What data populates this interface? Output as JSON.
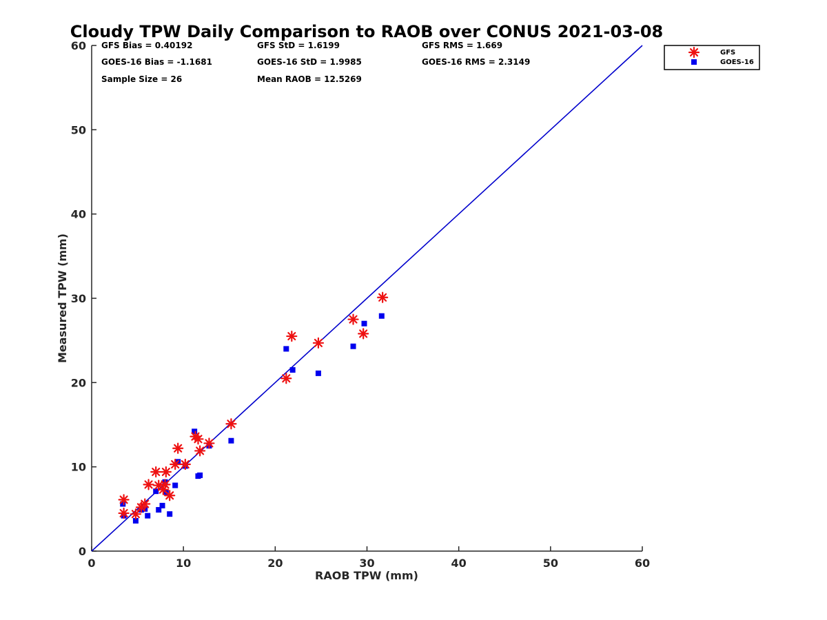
{
  "chart_data": {
    "type": "scatter",
    "title": "Cloudy TPW Daily Comparison to RAOB over CONUS 2021-03-08",
    "xlabel": "RAOB TPW (mm)",
    "ylabel": "Measured TPW (mm)",
    "xlim": [
      0,
      60
    ],
    "ylim": [
      0,
      60
    ],
    "xticks": [
      0,
      10,
      20,
      30,
      40,
      50,
      60
    ],
    "yticks": [
      0,
      10,
      20,
      30,
      40,
      50,
      60
    ],
    "grid": false,
    "legend_position": "top-right",
    "reference_line": {
      "from": [
        0,
        0
      ],
      "to": [
        60,
        60
      ],
      "color": "#0000cc"
    },
    "stats": {
      "gfs_bias": "GFS Bias = 0.40192",
      "gfs_std": "GFS StD = 1.6199",
      "gfs_rms": "GFS RMS = 1.669",
      "goes_bias": "GOES-16 Bias = -1.1681",
      "goes_std": "GOES-16 StD = 1.9985",
      "goes_rms": "GOES-16 RMS = 2.3149",
      "sample_size": "Sample Size = 26",
      "mean_raob": "Mean RAOB = 12.5269"
    },
    "series": [
      {
        "name": "GFS",
        "marker": "asterisk",
        "color": "#ee1111",
        "points": [
          [
            3.5,
            6.1
          ],
          [
            3.5,
            4.5
          ],
          [
            4.8,
            4.4
          ],
          [
            5.4,
            5.2
          ],
          [
            5.8,
            5.6
          ],
          [
            6.2,
            7.9
          ],
          [
            7.0,
            9.4
          ],
          [
            7.3,
            7.8
          ],
          [
            7.8,
            7.3
          ],
          [
            8.0,
            7.9
          ],
          [
            8.1,
            9.4
          ],
          [
            8.5,
            6.6
          ],
          [
            9.1,
            10.3
          ],
          [
            9.4,
            12.2
          ],
          [
            10.2,
            10.3
          ],
          [
            11.3,
            13.6
          ],
          [
            11.6,
            13.3
          ],
          [
            11.8,
            11.9
          ],
          [
            12.8,
            12.8
          ],
          [
            15.2,
            15.1
          ],
          [
            21.2,
            20.5
          ],
          [
            21.8,
            25.5
          ],
          [
            24.7,
            24.7
          ],
          [
            28.5,
            27.5
          ],
          [
            29.6,
            25.8
          ],
          [
            31.7,
            30.1
          ]
        ]
      },
      {
        "name": "GOES-16",
        "marker": "square",
        "color": "#0000ee",
        "points": [
          [
            3.4,
            5.6
          ],
          [
            3.5,
            4.2
          ],
          [
            4.8,
            3.6
          ],
          [
            5.4,
            4.9
          ],
          [
            5.8,
            5.0
          ],
          [
            6.1,
            4.2
          ],
          [
            7.0,
            7.1
          ],
          [
            7.3,
            4.9
          ],
          [
            7.7,
            5.4
          ],
          [
            8.0,
            8.2
          ],
          [
            8.1,
            7.0
          ],
          [
            8.5,
            4.4
          ],
          [
            9.1,
            7.8
          ],
          [
            9.4,
            10.6
          ],
          [
            10.2,
            10.1
          ],
          [
            11.2,
            14.2
          ],
          [
            11.6,
            8.9
          ],
          [
            11.8,
            9.0
          ],
          [
            12.8,
            12.5
          ],
          [
            15.2,
            13.1
          ],
          [
            21.2,
            24.0
          ],
          [
            21.9,
            21.5
          ],
          [
            24.7,
            21.1
          ],
          [
            28.5,
            24.3
          ],
          [
            29.7,
            27.0
          ],
          [
            31.6,
            27.9
          ]
        ]
      }
    ]
  }
}
